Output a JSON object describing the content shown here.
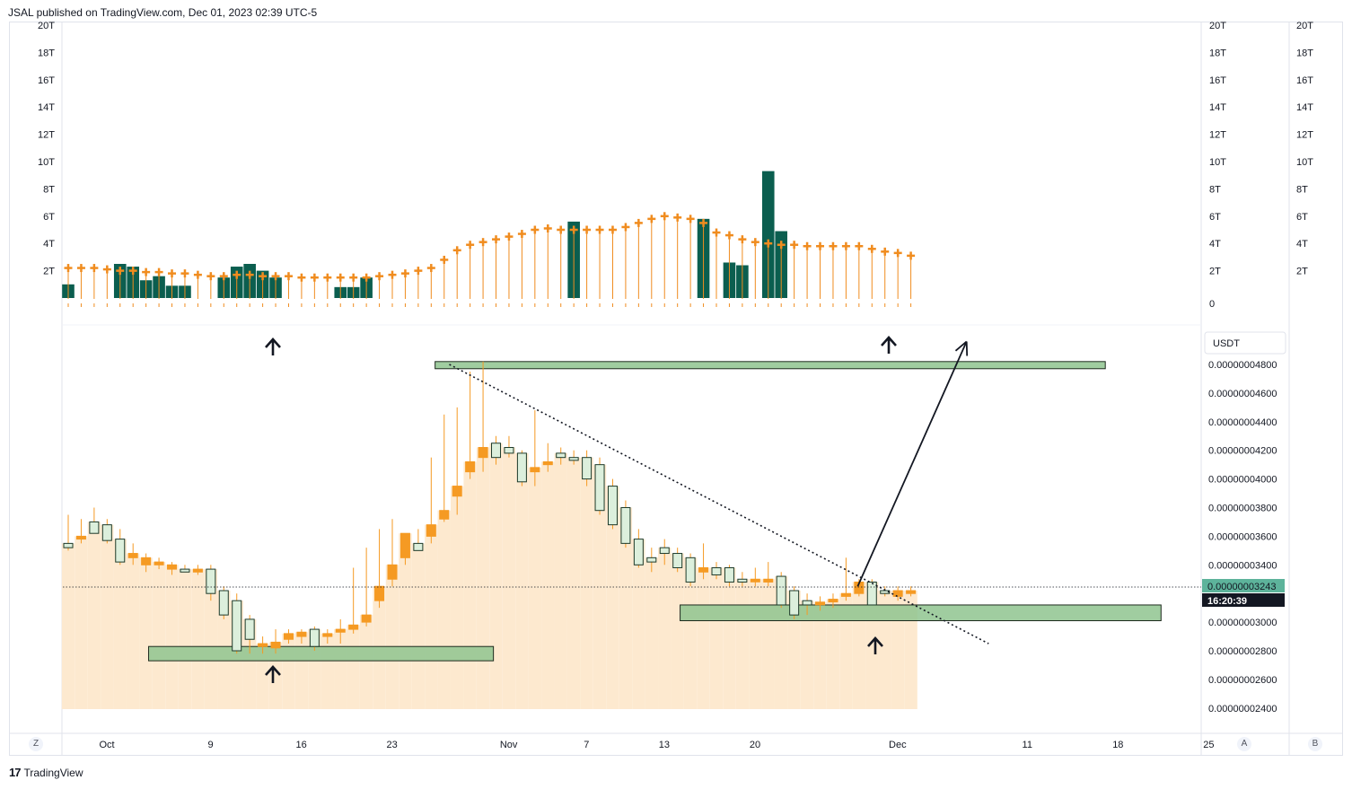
{
  "header": {
    "published": "JSAL published on TradingView.com, Dec 01, 2023 02:39 UTC-5"
  },
  "footer": {
    "brand": "TradingView",
    "logo": "17"
  },
  "corner_buttons": {
    "left": "Z",
    "scale_a": "A",
    "scale_b": "B"
  },
  "colors": {
    "volume_bar": "#0b5e4f",
    "volume_ma": "#f08c1f",
    "price_area": "#fde9cf",
    "candle_up": "#dcefdc",
    "candle_down": "#f59a23",
    "zone": "#8fc48f",
    "price_tag": "#5db39b"
  },
  "chart_data": {
    "type": "candlestick",
    "currency_label": "USDT",
    "current_price_label": "0.00000003243",
    "countdown": "16:20:39",
    "volume_axis_ticks": [
      "20T",
      "18T",
      "16T",
      "14T",
      "12T",
      "10T",
      "8T",
      "6T",
      "4T",
      "2T",
      "0"
    ],
    "price_axis_ticks": [
      "0.00000004800",
      "0.00000004600",
      "0.00000004400",
      "0.00000004200",
      "0.00000004000",
      "0.00000003800",
      "0.00000003600",
      "0.00000003400",
      "0.00000003000",
      "0.00000002800",
      "0.00000002600",
      "0.00000002400"
    ],
    "x_ticks": [
      {
        "label": "Oct",
        "day": 0
      },
      {
        "label": "9",
        "day": 8
      },
      {
        "label": "16",
        "day": 15
      },
      {
        "label": "23",
        "day": 22
      },
      {
        "label": "Nov",
        "day": 31
      },
      {
        "label": "7",
        "day": 37
      },
      {
        "label": "13",
        "day": 43
      },
      {
        "label": "20",
        "day": 50
      },
      {
        "label": "Dec",
        "day": 61
      },
      {
        "label": "11",
        "day": 71
      },
      {
        "label": "18",
        "day": 78
      },
      {
        "label": "25",
        "day": 85
      }
    ],
    "y_range": [
      2.35,
      4.9
    ],
    "volume_range": [
      0,
      20
    ],
    "units_note": "prices ×1e-8 USDT; volume in T",
    "candles": [
      [
        3.55,
        3.75,
        3.5,
        3.52
      ],
      [
        3.58,
        3.72,
        3.55,
        3.6
      ],
      [
        3.7,
        3.8,
        3.62,
        3.62
      ],
      [
        3.68,
        3.72,
        3.55,
        3.57
      ],
      [
        3.58,
        3.65,
        3.4,
        3.42
      ],
      [
        3.45,
        3.55,
        3.4,
        3.48
      ],
      [
        3.4,
        3.48,
        3.35,
        3.45
      ],
      [
        3.4,
        3.45,
        3.37,
        3.42
      ],
      [
        3.37,
        3.42,
        3.33,
        3.4
      ],
      [
        3.37,
        3.4,
        3.35,
        3.35
      ],
      [
        3.35,
        3.4,
        3.33,
        3.37
      ],
      [
        3.37,
        3.4,
        3.15,
        3.2
      ],
      [
        3.22,
        3.25,
        3.02,
        3.05
      ],
      [
        3.15,
        3.2,
        2.78,
        2.8
      ],
      [
        3.02,
        3.05,
        2.78,
        2.88
      ],
      [
        2.83,
        2.9,
        2.78,
        2.85
      ],
      [
        2.82,
        2.95,
        2.78,
        2.86
      ],
      [
        2.88,
        2.95,
        2.85,
        2.92
      ],
      [
        2.9,
        2.95,
        2.85,
        2.93
      ],
      [
        2.95,
        2.97,
        2.8,
        2.83
      ],
      [
        2.9,
        2.95,
        2.85,
        2.92
      ],
      [
        2.93,
        3.02,
        2.85,
        2.95
      ],
      [
        2.95,
        3.38,
        2.92,
        2.98
      ],
      [
        3.0,
        3.52,
        2.97,
        3.05
      ],
      [
        3.15,
        3.65,
        3.1,
        3.25
      ],
      [
        3.3,
        3.72,
        3.25,
        3.4
      ],
      [
        3.45,
        3.6,
        3.4,
        3.62
      ],
      [
        3.55,
        3.65,
        3.5,
        3.5
      ],
      [
        3.6,
        4.15,
        3.55,
        3.68
      ],
      [
        3.72,
        4.45,
        3.7,
        3.78
      ],
      [
        3.88,
        4.5,
        3.75,
        3.95
      ],
      [
        4.05,
        4.75,
        4.0,
        4.12
      ],
      [
        4.15,
        4.82,
        4.05,
        4.22
      ],
      [
        4.25,
        4.3,
        4.1,
        4.15
      ],
      [
        4.22,
        4.3,
        4.15,
        4.18
      ],
      [
        4.18,
        4.2,
        3.95,
        3.98
      ],
      [
        4.05,
        4.48,
        3.95,
        4.08
      ],
      [
        4.1,
        4.25,
        4.05,
        4.12
      ],
      [
        4.18,
        4.22,
        4.1,
        4.15
      ],
      [
        4.15,
        4.2,
        4.1,
        4.13
      ],
      [
        4.15,
        4.2,
        3.95,
        4.0
      ],
      [
        4.1,
        4.15,
        3.75,
        3.78
      ],
      [
        3.95,
        4.0,
        3.65,
        3.68
      ],
      [
        3.8,
        3.85,
        3.52,
        3.55
      ],
      [
        3.58,
        3.65,
        3.38,
        3.4
      ],
      [
        3.45,
        3.52,
        3.35,
        3.42
      ],
      [
        3.52,
        3.58,
        3.4,
        3.48
      ],
      [
        3.48,
        3.52,
        3.35,
        3.38
      ],
      [
        3.45,
        3.48,
        3.25,
        3.28
      ],
      [
        3.35,
        3.55,
        3.3,
        3.38
      ],
      [
        3.38,
        3.42,
        3.3,
        3.33
      ],
      [
        3.38,
        3.4,
        3.25,
        3.28
      ],
      [
        3.3,
        3.35,
        3.25,
        3.28
      ],
      [
        3.3,
        3.38,
        3.25,
        3.3
      ],
      [
        3.28,
        3.42,
        3.25,
        3.3
      ],
      [
        3.32,
        3.35,
        3.1,
        3.12
      ],
      [
        3.22,
        3.25,
        3.02,
        3.05
      ],
      [
        3.15,
        3.2,
        3.05,
        3.12
      ],
      [
        3.14,
        3.18,
        3.08,
        3.14
      ],
      [
        3.15,
        3.2,
        3.1,
        3.16
      ],
      [
        3.18,
        3.45,
        3.15,
        3.2
      ],
      [
        3.2,
        3.3,
        3.18,
        3.28
      ],
      [
        3.28,
        3.3,
        3.12,
        3.12
      ],
      [
        3.22,
        3.25,
        3.18,
        3.2
      ],
      [
        3.18,
        3.25,
        3.15,
        3.22
      ],
      [
        3.2,
        3.25,
        3.18,
        3.22
      ]
    ],
    "volume": [
      1.0,
      0.0,
      0.0,
      0.0,
      2.5,
      2.3,
      1.3,
      1.6,
      0.9,
      0.9,
      0.0,
      0.0,
      1.5,
      2.3,
      2.5,
      2.0,
      1.5,
      0.0,
      0.0,
      0.0,
      0.0,
      0.8,
      0.8,
      1.5,
      0.0,
      0.0,
      0.0,
      0.0,
      0.0,
      0.0,
      0.0,
      0.0,
      0.0,
      0.0,
      0.0,
      0.0,
      0.0,
      0.0,
      0.0,
      5.6,
      0.0,
      0.0,
      0.0,
      0.0,
      0.0,
      0.0,
      0.0,
      0.0,
      0.0,
      5.8,
      0.0,
      2.6,
      2.4,
      0.0,
      9.3,
      4.9,
      0.0,
      0.0,
      0.0,
      0.0,
      0.0,
      0.0,
      0.0,
      0.0,
      0.0,
      0.0
    ],
    "volume_ma": [
      2.2,
      2.2,
      2.2,
      2.1,
      2.0,
      2.0,
      1.9,
      1.9,
      1.8,
      1.8,
      1.7,
      1.6,
      1.6,
      1.7,
      1.7,
      1.6,
      1.6,
      1.6,
      1.5,
      1.5,
      1.5,
      1.5,
      1.5,
      1.5,
      1.6,
      1.7,
      1.8,
      2.0,
      2.2,
      2.8,
      3.5,
      3.9,
      4.1,
      4.3,
      4.5,
      4.7,
      5.0,
      5.1,
      5.0,
      5.0,
      5.0,
      5.0,
      5.0,
      5.2,
      5.5,
      5.8,
      6.0,
      5.9,
      5.8,
      5.5,
      4.8,
      4.6,
      4.3,
      4.1,
      4.0,
      3.9,
      3.9,
      3.8,
      3.8,
      3.8,
      3.8,
      3.8,
      3.6,
      3.4,
      3.3,
      3.1
    ],
    "annotations": {
      "resistance_zone": {
        "from_day": 28.3,
        "to_day": 80,
        "low": 4.77,
        "high": 4.82
      },
      "support_zone_left": {
        "from_day": 6.2,
        "to_day": 32.8,
        "low": 2.73,
        "high": 2.83
      },
      "support_zone_right": {
        "from_day": 47.2,
        "to_day": 84.3,
        "low": 3.01,
        "high": 3.12
      },
      "trendline": {
        "from": [
          29.4,
          4.8
        ],
        "to": [
          71,
          2.85
        ]
      },
      "target_arrow": {
        "from": [
          60.9,
          3.25
        ],
        "to": [
          69.3,
          4.96
        ]
      }
    }
  }
}
